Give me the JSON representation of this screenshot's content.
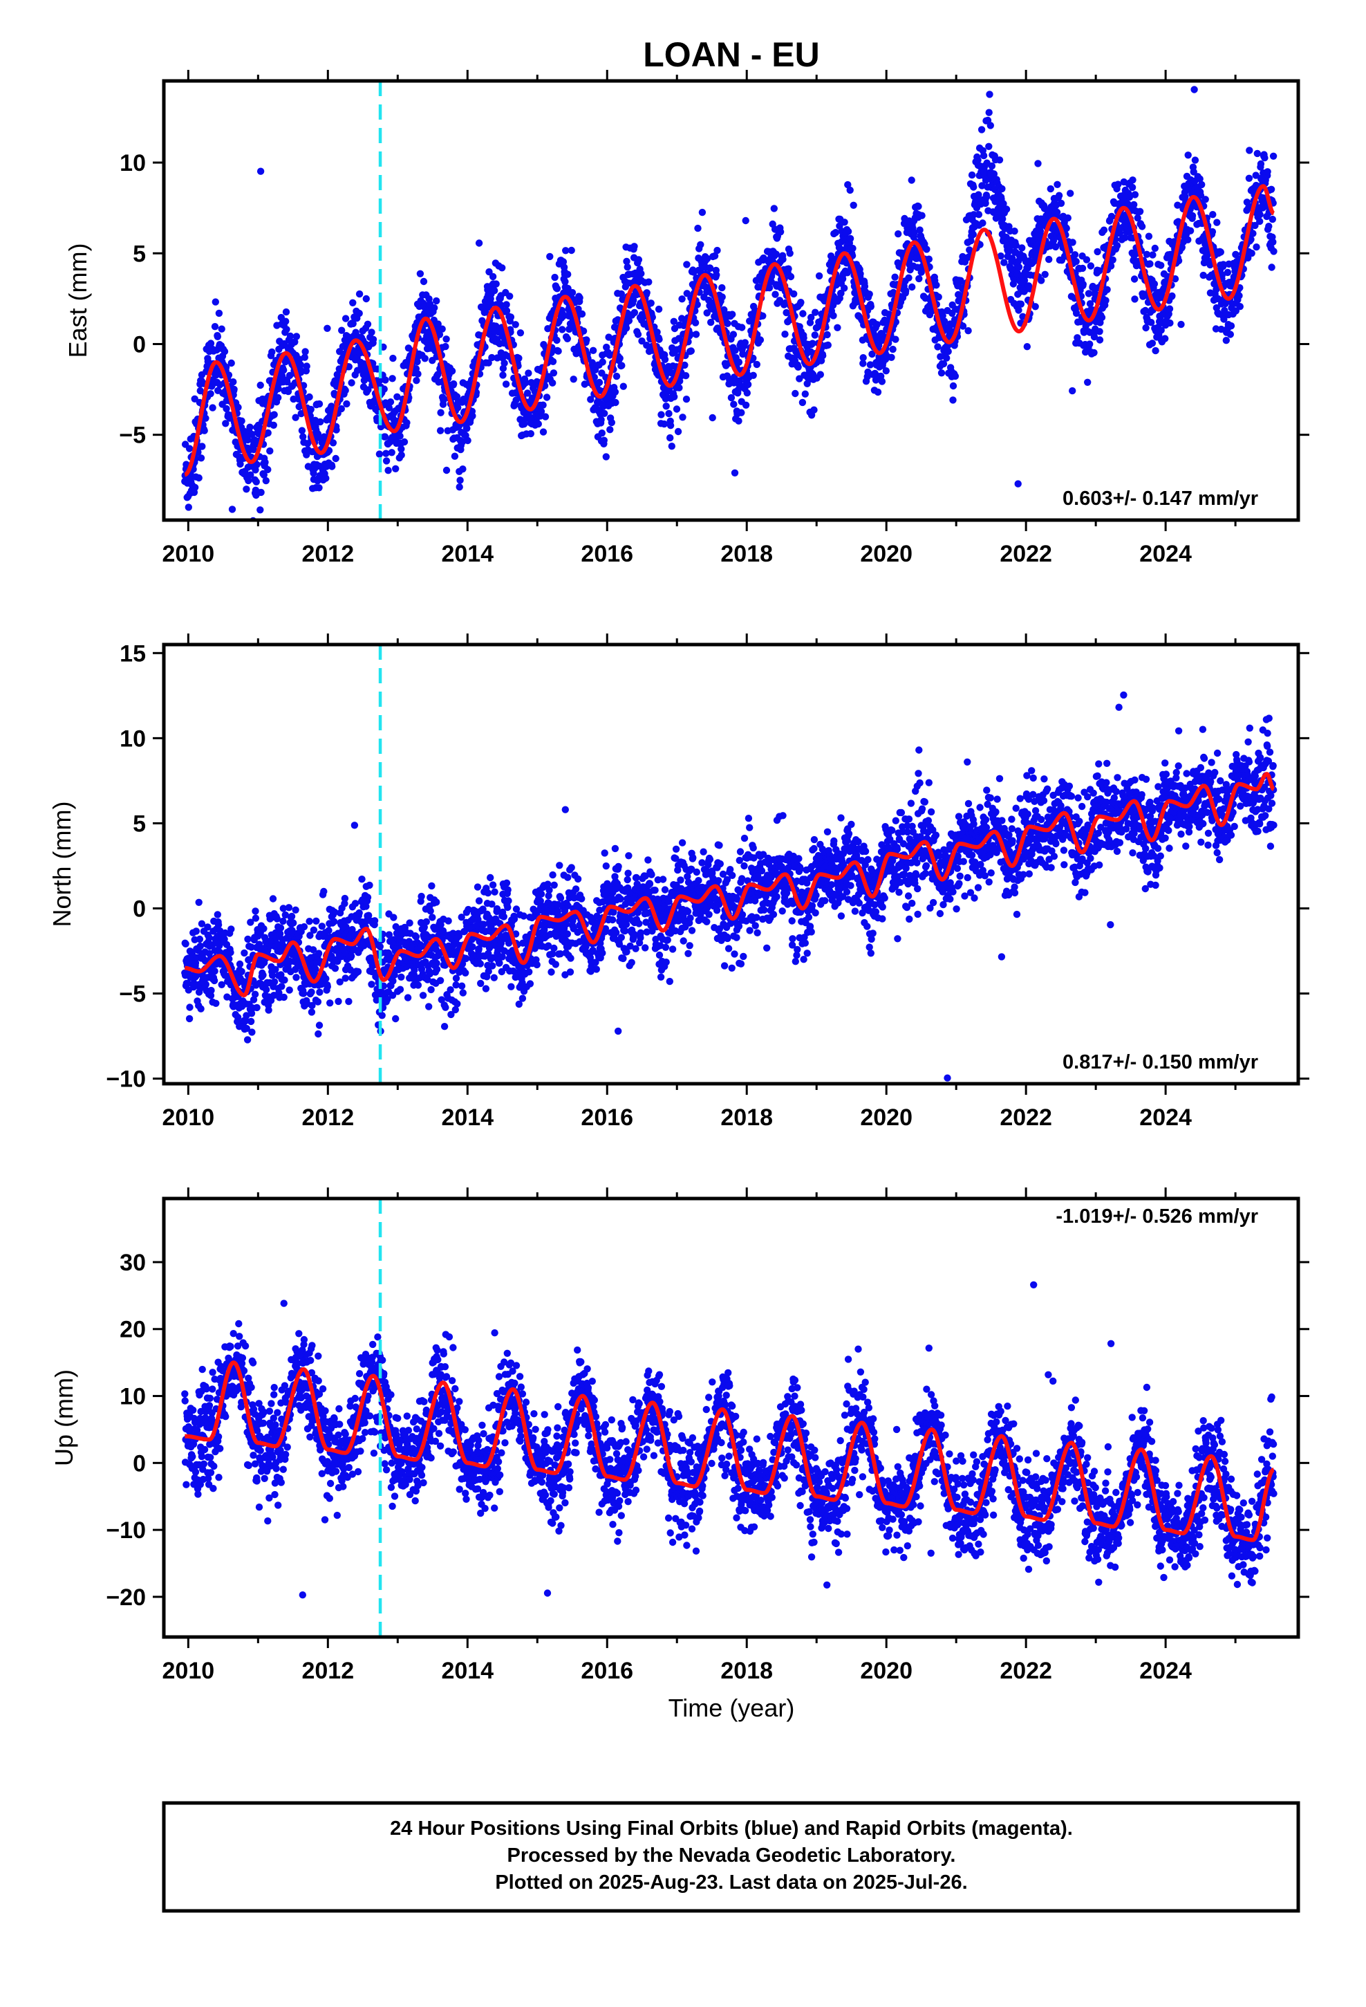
{
  "title": "LOAN - EU",
  "colors": {
    "points": "#0a0aee",
    "model": "#ff1111",
    "event_line": "#22e4f0",
    "frame": "#000000"
  },
  "x_axis_label": "Time (year)",
  "chart_data": [
    {
      "type": "scatter",
      "component": "east",
      "ylabel": "East (mm)",
      "xlim": [
        2009.65,
        2025.9
      ],
      "ylim": [
        -9.7,
        14.5
      ],
      "x_ticks": [
        2010,
        2012,
        2014,
        2016,
        2018,
        2020,
        2022,
        2024
      ],
      "y_ticks": [
        -5,
        0,
        5,
        10
      ],
      "event_lines_x": [
        2012.75
      ],
      "rate_label": "0.603+/- 0.147 mm/yr",
      "model_anchors": [
        [
          2009.95,
          -7.2
        ],
        [
          2010.4,
          -1.0
        ],
        [
          2010.9,
          -6.5
        ],
        [
          2011.4,
          -0.5
        ],
        [
          2011.9,
          -6.0
        ],
        [
          2012.4,
          0.2
        ],
        [
          2012.95,
          -4.8
        ],
        [
          2013.4,
          1.4
        ],
        [
          2013.9,
          -4.3
        ],
        [
          2014.4,
          2.0
        ],
        [
          2014.9,
          -3.6
        ],
        [
          2015.4,
          2.6
        ],
        [
          2015.9,
          -2.9
        ],
        [
          2016.4,
          3.2
        ],
        [
          2016.9,
          -2.3
        ],
        [
          2017.4,
          3.8
        ],
        [
          2017.9,
          -1.7
        ],
        [
          2018.4,
          4.4
        ],
        [
          2018.9,
          -1.1
        ],
        [
          2019.4,
          5.0
        ],
        [
          2019.9,
          -0.5
        ],
        [
          2020.4,
          5.6
        ],
        [
          2020.9,
          0.1
        ],
        [
          2021.4,
          6.3
        ],
        [
          2021.9,
          0.7
        ],
        [
          2022.4,
          6.9
        ],
        [
          2022.9,
          1.3
        ],
        [
          2023.4,
          7.5
        ],
        [
          2023.9,
          1.9
        ],
        [
          2024.4,
          8.1
        ],
        [
          2024.9,
          2.5
        ],
        [
          2025.4,
          8.7
        ],
        [
          2025.55,
          7.2
        ]
      ],
      "gap": [
        2020.95,
        2023.15
      ],
      "gap_offset": 3.5,
      "noise": 1.4
    },
    {
      "type": "scatter",
      "component": "north",
      "ylabel": "North (mm)",
      "xlim": [
        2009.65,
        2025.9
      ],
      "ylim": [
        -10.3,
        15.5
      ],
      "x_ticks": [
        2010,
        2012,
        2014,
        2016,
        2018,
        2020,
        2022,
        2024
      ],
      "y_ticks": [
        -10,
        -5,
        0,
        5,
        10,
        15
      ],
      "event_lines_x": [
        2012.75
      ],
      "rate_label": "0.817+/- 0.150 mm/yr",
      "model_anchors": [
        [
          2009.95,
          -3.5
        ],
        [
          2010.15,
          -3.7
        ],
        [
          2010.45,
          -2.8
        ],
        [
          2010.8,
          -5.1
        ],
        [
          2011.0,
          -2.7
        ],
        [
          2011.3,
          -3.1
        ],
        [
          2011.5,
          -2.0
        ],
        [
          2011.8,
          -4.3
        ],
        [
          2012.1,
          -1.8
        ],
        [
          2012.35,
          -2.1
        ],
        [
          2012.55,
          -1.2
        ],
        [
          2012.8,
          -4.2
        ],
        [
          2013.05,
          -2.5
        ],
        [
          2013.3,
          -2.8
        ],
        [
          2013.55,
          -1.8
        ],
        [
          2013.8,
          -3.5
        ],
        [
          2014.05,
          -1.5
        ],
        [
          2014.3,
          -1.8
        ],
        [
          2014.55,
          -1.0
        ],
        [
          2014.8,
          -3.2
        ],
        [
          2015.05,
          -0.5
        ],
        [
          2015.3,
          -0.7
        ],
        [
          2015.55,
          -0.2
        ],
        [
          2015.8,
          -2.0
        ],
        [
          2016.05,
          0.1
        ],
        [
          2016.3,
          -0.2
        ],
        [
          2016.55,
          0.6
        ],
        [
          2016.8,
          -1.3
        ],
        [
          2017.05,
          0.7
        ],
        [
          2017.3,
          0.4
        ],
        [
          2017.55,
          1.3
        ],
        [
          2017.8,
          -0.6
        ],
        [
          2018.05,
          1.4
        ],
        [
          2018.3,
          1.1
        ],
        [
          2018.55,
          2.0
        ],
        [
          2018.8,
          0.0
        ],
        [
          2019.05,
          2.0
        ],
        [
          2019.3,
          1.8
        ],
        [
          2019.55,
          2.7
        ],
        [
          2019.8,
          0.7
        ],
        [
          2020.05,
          3.2
        ],
        [
          2020.3,
          3.0
        ],
        [
          2020.55,
          3.9
        ],
        [
          2020.8,
          1.7
        ],
        [
          2021.05,
          3.8
        ],
        [
          2021.3,
          3.6
        ],
        [
          2021.55,
          4.5
        ],
        [
          2021.8,
          2.5
        ],
        [
          2022.05,
          4.8
        ],
        [
          2022.3,
          4.6
        ],
        [
          2022.55,
          5.6
        ],
        [
          2022.8,
          3.3
        ],
        [
          2023.05,
          5.4
        ],
        [
          2023.3,
          5.2
        ],
        [
          2023.55,
          6.3
        ],
        [
          2023.8,
          4.0
        ],
        [
          2024.05,
          6.3
        ],
        [
          2024.3,
          6.0
        ],
        [
          2024.55,
          7.2
        ],
        [
          2024.8,
          4.9
        ],
        [
          2025.05,
          7.3
        ],
        [
          2025.3,
          7.0
        ],
        [
          2025.45,
          7.9
        ],
        [
          2025.55,
          7.0
        ]
      ],
      "noise": 1.5
    },
    {
      "type": "scatter",
      "component": "up",
      "ylabel": "Up (mm)",
      "xlim": [
        2009.65,
        2025.9
      ],
      "ylim": [
        -26,
        39.5
      ],
      "x_ticks": [
        2010,
        2012,
        2014,
        2016,
        2018,
        2020,
        2022,
        2024
      ],
      "y_ticks": [
        -20,
        -10,
        0,
        10,
        20,
        30
      ],
      "event_lines_x": [
        2012.75
      ],
      "rate_label": "-1.019+/- 0.526 mm/yr",
      "model_anchors": [
        [
          2009.95,
          4.0
        ],
        [
          2010.3,
          3.5
        ],
        [
          2010.65,
          15.0
        ],
        [
          2011.0,
          3.0
        ],
        [
          2011.25,
          2.5
        ],
        [
          2011.65,
          14.0
        ],
        [
          2012.0,
          2.0
        ],
        [
          2012.25,
          1.5
        ],
        [
          2012.65,
          13.0
        ],
        [
          2013.0,
          1.0
        ],
        [
          2013.25,
          0.5
        ],
        [
          2013.65,
          12.0
        ],
        [
          2014.0,
          0.0
        ],
        [
          2014.25,
          -0.5
        ],
        [
          2014.65,
          11.0
        ],
        [
          2015.0,
          -1.0
        ],
        [
          2015.25,
          -1.5
        ],
        [
          2015.65,
          10.0
        ],
        [
          2016.0,
          -2.0
        ],
        [
          2016.25,
          -2.5
        ],
        [
          2016.65,
          9.0
        ],
        [
          2017.0,
          -3.0
        ],
        [
          2017.25,
          -3.5
        ],
        [
          2017.65,
          8.0
        ],
        [
          2018.0,
          -4.0
        ],
        [
          2018.25,
          -4.5
        ],
        [
          2018.65,
          7.0
        ],
        [
          2019.0,
          -5.0
        ],
        [
          2019.25,
          -5.5
        ],
        [
          2019.65,
          6.0
        ],
        [
          2020.0,
          -6.0
        ],
        [
          2020.25,
          -6.5
        ],
        [
          2020.65,
          5.0
        ],
        [
          2021.0,
          -7.0
        ],
        [
          2021.25,
          -7.5
        ],
        [
          2021.65,
          4.0
        ],
        [
          2022.0,
          -8.0
        ],
        [
          2022.25,
          -8.5
        ],
        [
          2022.65,
          3.0
        ],
        [
          2023.0,
          -9.0
        ],
        [
          2023.25,
          -9.5
        ],
        [
          2023.65,
          2.0
        ],
        [
          2024.0,
          -10.0
        ],
        [
          2024.25,
          -10.5
        ],
        [
          2024.65,
          1.0
        ],
        [
          2025.0,
          -11.0
        ],
        [
          2025.25,
          -11.5
        ],
        [
          2025.55,
          -1.0
        ]
      ],
      "noise": 4.0
    }
  ],
  "notes": [
    "24 Hour Positions Using Final Orbits (blue) and Rapid Orbits (magenta).",
    "Processed by the Nevada Geodetic Laboratory.",
    "Plotted on 2025-Aug-23. Last data on 2025-Jul-26."
  ]
}
